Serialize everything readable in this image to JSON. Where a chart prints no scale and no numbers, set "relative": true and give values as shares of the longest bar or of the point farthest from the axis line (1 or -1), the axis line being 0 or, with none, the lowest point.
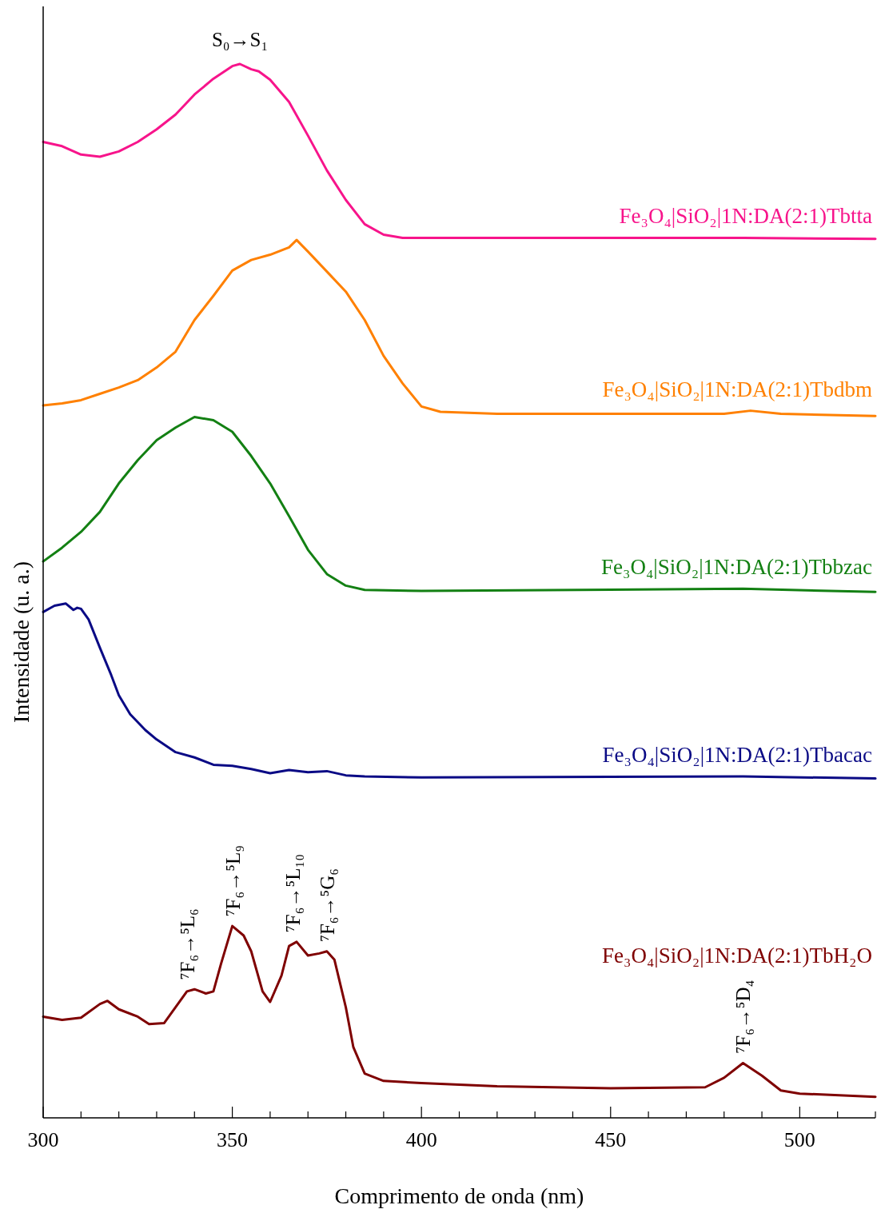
{
  "chart_data": {
    "type": "line",
    "relative": true,
    "xlabel": "Comprimento de onda (nm)",
    "ylabel": "Intensidade (u. a.)",
    "xlim": [
      300,
      520
    ],
    "xticks": [
      300,
      {
        "value": 310,
        "label": null
      },
      {
        "value": 320,
        "label": null
      },
      {
        "value": 330,
        "label": null
      },
      {
        "value": 340,
        "label": null
      },
      350,
      {
        "value": 360,
        "label": null
      },
      {
        "value": 370,
        "label": null
      },
      {
        "value": 380,
        "label": null
      },
      {
        "value": 390,
        "label": null
      },
      400,
      {
        "value": 410,
        "label": null
      },
      {
        "value": 420,
        "label": null
      },
      {
        "value": 430,
        "label": null
      },
      {
        "value": 440,
        "label": null
      },
      450,
      {
        "value": 460,
        "label": null
      },
      {
        "value": 470,
        "label": null
      },
      {
        "value": 480,
        "label": null
      },
      {
        "value": 490,
        "label": null
      },
      500,
      {
        "value": 510,
        "label": null
      },
      {
        "value": 520,
        "label": null
      }
    ],
    "series": [
      {
        "name": "Fe₃O₄|SiO₂|1N:DA(2:1)Tbtta",
        "color": "#f7148b",
        "x": [
          300,
          305,
          310,
          315,
          320,
          325,
          330,
          335,
          340,
          345,
          350,
          352,
          355,
          357,
          360,
          365,
          370,
          375,
          380,
          385,
          390,
          395,
          400,
          450,
          485,
          520
        ],
        "values": [
          0.926,
          0.922,
          0.914,
          0.912,
          0.917,
          0.926,
          0.938,
          0.952,
          0.971,
          0.986,
          0.998,
          1.0,
          0.995,
          0.993,
          0.985,
          0.964,
          0.932,
          0.899,
          0.871,
          0.848,
          0.838,
          0.835,
          0.835,
          0.835,
          0.835,
          0.834
        ]
      },
      {
        "name": "Fe₃O₄|SiO₂|1N:DA(2:1)Tbdbm",
        "color": "#ff8000",
        "x": [
          300,
          305,
          310,
          315,
          320,
          325,
          330,
          335,
          340,
          345,
          350,
          355,
          360,
          365,
          367,
          370,
          375,
          380,
          385,
          390,
          395,
          400,
          405,
          420,
          480,
          487,
          495,
          520
        ],
        "values": [
          0.676,
          0.678,
          0.681,
          0.687,
          0.693,
          0.7,
          0.712,
          0.727,
          0.757,
          0.78,
          0.804,
          0.814,
          0.819,
          0.826,
          0.833,
          0.822,
          0.803,
          0.784,
          0.757,
          0.723,
          0.697,
          0.675,
          0.67,
          0.668,
          0.668,
          0.671,
          0.668,
          0.666
        ]
      },
      {
        "name": "Fe₃O₄|SiO₂|1N:DA(2:1)Tbbzac",
        "color": "#138013",
        "x": [
          300,
          305,
          310,
          315,
          320,
          325,
          330,
          335,
          340,
          345,
          350,
          355,
          360,
          365,
          370,
          375,
          380,
          385,
          400,
          485,
          520
        ],
        "values": [
          0.528,
          0.541,
          0.556,
          0.575,
          0.602,
          0.624,
          0.643,
          0.655,
          0.665,
          0.662,
          0.651,
          0.628,
          0.602,
          0.571,
          0.539,
          0.516,
          0.505,
          0.501,
          0.5,
          0.502,
          0.499
        ]
      },
      {
        "name": "Fe₃O₄|SiO₂|1N:DA(2:1)Tbacac",
        "color": "#0a0a85",
        "x": [
          300,
          303,
          306,
          308,
          309,
          310,
          312,
          315,
          318,
          320,
          323,
          327,
          330,
          335,
          340,
          345,
          350,
          355,
          360,
          365,
          370,
          375,
          380,
          385,
          400,
          485,
          520
        ],
        "values": [
          0.48,
          0.486,
          0.488,
          0.482,
          0.484,
          0.483,
          0.473,
          0.446,
          0.42,
          0.401,
          0.383,
          0.368,
          0.359,
          0.347,
          0.342,
          0.335,
          0.334,
          0.331,
          0.327,
          0.33,
          0.328,
          0.329,
          0.325,
          0.324,
          0.323,
          0.324,
          0.322
        ]
      },
      {
        "name": "Fe₃O₄|SiO₂|1N:DA(2:1)TbH₂O",
        "color": "#7f0000",
        "x": [
          300,
          305,
          310,
          315,
          317,
          320,
          325,
          328,
          332,
          335,
          338,
          340,
          343,
          345,
          347,
          350,
          353,
          355,
          358,
          360,
          363,
          365,
          367,
          370,
          373,
          375,
          377,
          380,
          382,
          385,
          390,
          400,
          420,
          450,
          475,
          480,
          485,
          490,
          495,
          500,
          520
        ],
        "values": [
          0.096,
          0.093,
          0.095,
          0.108,
          0.111,
          0.103,
          0.096,
          0.089,
          0.09,
          0.105,
          0.12,
          0.122,
          0.118,
          0.12,
          0.146,
          0.182,
          0.173,
          0.158,
          0.12,
          0.11,
          0.135,
          0.163,
          0.167,
          0.154,
          0.156,
          0.158,
          0.15,
          0.105,
          0.067,
          0.042,
          0.035,
          0.033,
          0.03,
          0.028,
          0.029,
          0.038,
          0.052,
          0.04,
          0.026,
          0.023,
          0.02
        ]
      }
    ],
    "annotations": [
      {
        "text": "S₀→S₁",
        "x": 352,
        "y": 1.0
      },
      {
        "text": "⁷F₆→⁵L₆",
        "x": 338,
        "y": 0.122
      },
      {
        "text": "⁷F₆→⁵L₉",
        "x": 350,
        "y": 0.182
      },
      {
        "text": "⁷F₆→⁵L₁₀",
        "x": 366,
        "y": 0.167
      },
      {
        "text": "⁷F₆→⁵G₆",
        "x": 375,
        "y": 0.158
      },
      {
        "text": "⁷F₆→⁵D₄",
        "x": 485,
        "y": 0.052
      }
    ]
  }
}
